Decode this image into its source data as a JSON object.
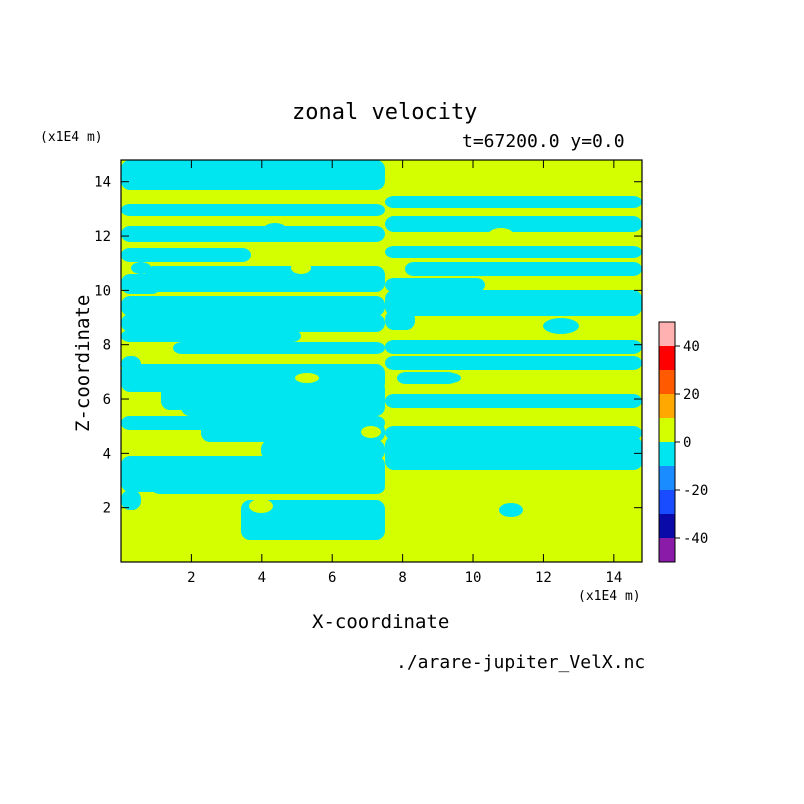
{
  "chart_data": {
    "type": "heatmap",
    "title": "zonal velocity",
    "subtitle": "t=67200.0 y=0.0",
    "xlabel": "X-coordinate",
    "ylabel": "Z-coordinate",
    "x_unit": "(x1E4 m)",
    "y_unit": "(x1E4 m)",
    "xlim": [
      0,
      14.8
    ],
    "ylim": [
      0,
      14.8
    ],
    "x_ticks": [
      2,
      4,
      6,
      8,
      10,
      12,
      14
    ],
    "y_ticks": [
      2,
      4,
      6,
      8,
      10,
      12,
      14
    ],
    "file": "./arare-jupiter_VelX.nc",
    "colorbar": {
      "levels": [
        -50,
        -40,
        -30,
        -20,
        -10,
        0,
        10,
        20,
        30,
        40,
        50
      ],
      "tick_labels": [
        -40,
        -20,
        0,
        20,
        40
      ],
      "colors": [
        "#8a1aa8",
        "#0a0aa8",
        "#1a4cff",
        "#1a8cff",
        "#00e6f0",
        "#d4ff00",
        "#ffa800",
        "#ff5a00",
        "#ff0000",
        "#ffb0b0"
      ],
      "position": "right"
    },
    "series": [
      {
        "name": "0 to 10",
        "color": "#d4ff00"
      },
      {
        "name": "-10 to 0",
        "color": "#00e6f0"
      }
    ]
  }
}
